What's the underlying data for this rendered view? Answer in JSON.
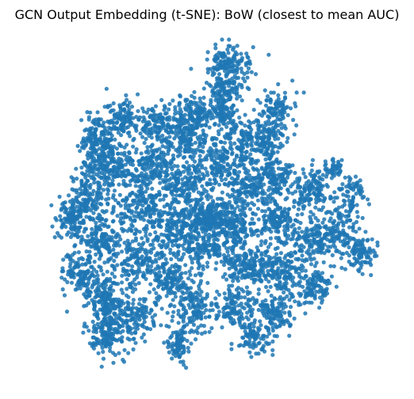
{
  "title": "GCN Output Embedding (t-SNE): BoW (closest to mean AUC)",
  "chart_data": {
    "type": "scatter",
    "title": "GCN Output Embedding (t-SNE): BoW (closest to mean AUC)",
    "xlabel": "",
    "ylabel": "",
    "axes_visible": false,
    "grid": false,
    "legend": "none",
    "point_color": "#1f77b4",
    "point_alpha": 0.85,
    "xlim": [
      -100,
      100
    ],
    "ylim": [
      -100,
      100
    ],
    "note_on_values": "t-SNE coordinates are unlabeled; clusters approximate the visible point cloud (dense blob of a few thousand points).",
    "clusters": [
      {
        "cx": -64,
        "cy": 40,
        "sx": 6,
        "sy": 8,
        "n": 180
      },
      {
        "cx": -50,
        "cy": 52,
        "sx": 5,
        "sy": 6,
        "n": 120
      },
      {
        "cx": -56,
        "cy": 22,
        "sx": 8,
        "sy": 6,
        "n": 160
      },
      {
        "cx": -70,
        "cy": 6,
        "sx": 6,
        "sy": 10,
        "n": 160
      },
      {
        "cx": -80,
        "cy": -8,
        "sx": 5,
        "sy": 6,
        "n": 120
      },
      {
        "cx": -62,
        "cy": -20,
        "sx": 6,
        "sy": 8,
        "n": 140
      },
      {
        "cx": -74,
        "cy": -40,
        "sx": 6,
        "sy": 6,
        "n": 130
      },
      {
        "cx": -60,
        "cy": -54,
        "sx": 7,
        "sy": 8,
        "n": 170
      },
      {
        "cx": -58,
        "cy": -76,
        "sx": 6,
        "sy": 8,
        "n": 170
      },
      {
        "cx": -42,
        "cy": -66,
        "sx": 6,
        "sy": 6,
        "n": 110
      },
      {
        "cx": -40,
        "cy": -30,
        "sx": 7,
        "sy": 8,
        "n": 170
      },
      {
        "cx": -40,
        "cy": 0,
        "sx": 8,
        "sy": 7,
        "n": 170
      },
      {
        "cx": -32,
        "cy": 24,
        "sx": 7,
        "sy": 8,
        "n": 170
      },
      {
        "cx": -30,
        "cy": 50,
        "sx": 6,
        "sy": 6,
        "n": 120
      },
      {
        "cx": -14,
        "cy": 42,
        "sx": 6,
        "sy": 8,
        "n": 150
      },
      {
        "cx": -8,
        "cy": 56,
        "sx": 6,
        "sy": 5,
        "n": 110
      },
      {
        "cx": -14,
        "cy": 14,
        "sx": 7,
        "sy": 7,
        "n": 160
      },
      {
        "cx": -18,
        "cy": -14,
        "sx": 7,
        "sy": 7,
        "n": 160
      },
      {
        "cx": -22,
        "cy": -44,
        "sx": 6,
        "sy": 7,
        "n": 140
      },
      {
        "cx": -8,
        "cy": -60,
        "sx": 5,
        "sy": 8,
        "n": 130
      },
      {
        "cx": -18,
        "cy": -82,
        "sx": 4,
        "sy": 6,
        "n": 90
      },
      {
        "cx": 0,
        "cy": -26,
        "sx": 8,
        "sy": 6,
        "n": 150
      },
      {
        "cx": -2,
        "cy": -6,
        "sx": 8,
        "sy": 6,
        "n": 260
      },
      {
        "cx": 4,
        "cy": 28,
        "sx": 6,
        "sy": 8,
        "n": 140
      },
      {
        "cx": 8,
        "cy": 56,
        "sx": 5,
        "sy": 6,
        "n": 100
      },
      {
        "cx": 22,
        "cy": 40,
        "sx": 6,
        "sy": 8,
        "n": 140
      },
      {
        "cx": 22,
        "cy": 12,
        "sx": 7,
        "sy": 7,
        "n": 160
      },
      {
        "cx": 16,
        "cy": -12,
        "sx": 6,
        "sy": 7,
        "n": 150
      },
      {
        "cx": 22,
        "cy": -36,
        "sx": 7,
        "sy": 7,
        "n": 160
      },
      {
        "cx": 16,
        "cy": -60,
        "sx": 6,
        "sy": 6,
        "n": 130
      },
      {
        "cx": 26,
        "cy": -78,
        "sx": 5,
        "sy": 5,
        "n": 90
      },
      {
        "cx": 40,
        "cy": -64,
        "sx": 6,
        "sy": 6,
        "n": 120
      },
      {
        "cx": 42,
        "cy": -38,
        "sx": 7,
        "sy": 7,
        "n": 160
      },
      {
        "cx": 40,
        "cy": -10,
        "sx": 6,
        "sy": 7,
        "n": 150
      },
      {
        "cx": 38,
        "cy": 18,
        "sx": 6,
        "sy": 7,
        "n": 150
      },
      {
        "cx": 36,
        "cy": 42,
        "sx": 5,
        "sy": 6,
        "n": 110
      },
      {
        "cx": 42,
        "cy": 60,
        "sx": 5,
        "sy": 5,
        "n": 80
      },
      {
        "cx": 12,
        "cy": 84,
        "sx": 7,
        "sy": 6,
        "n": 150
      },
      {
        "cx": 8,
        "cy": 70,
        "sx": 5,
        "sy": 5,
        "n": 80
      },
      {
        "cx": 60,
        "cy": 10,
        "sx": 6,
        "sy": 7,
        "n": 140
      },
      {
        "cx": 60,
        "cy": -20,
        "sx": 6,
        "sy": 7,
        "n": 130
      },
      {
        "cx": 62,
        "cy": -48,
        "sx": 5,
        "sy": 6,
        "n": 110
      },
      {
        "cx": 76,
        "cy": -14,
        "sx": 6,
        "sy": 8,
        "n": 130
      },
      {
        "cx": 88,
        "cy": -28,
        "sx": 5,
        "sy": 5,
        "n": 90
      },
      {
        "cx": 84,
        "cy": 8,
        "sx": 4,
        "sy": 5,
        "n": 70
      },
      {
        "cx": 74,
        "cy": 22,
        "sx": 3,
        "sy": 3,
        "n": 40
      }
    ]
  }
}
